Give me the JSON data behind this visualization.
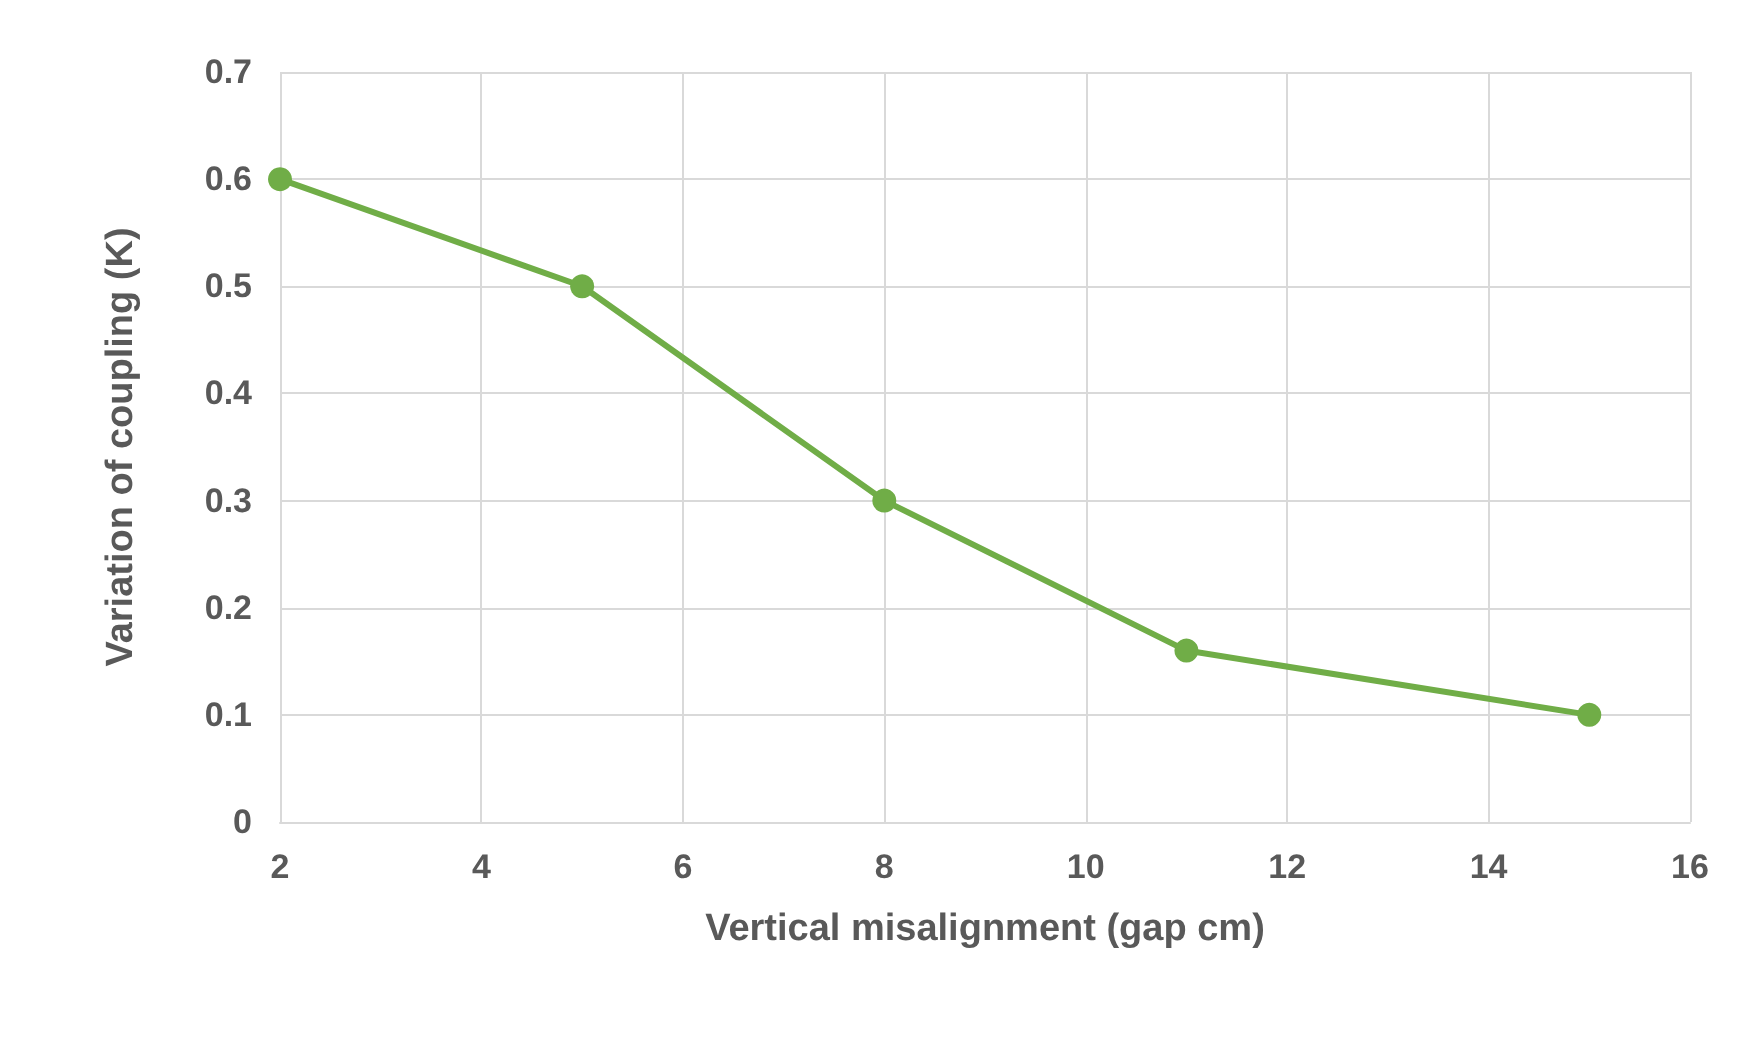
{
  "chart_data": {
    "type": "line",
    "xlabel": "Vertical misalignment (gap cm)",
    "ylabel": "Variation of coupling (K)",
    "x": [
      2,
      5,
      8,
      11,
      15
    ],
    "series": [
      {
        "color": "#70ad47",
        "values": [
          0.6,
          0.5,
          0.3,
          0.16,
          0.1
        ]
      }
    ],
    "xlim": [
      2,
      16
    ],
    "xticks": [
      2,
      4,
      6,
      8,
      10,
      12,
      14,
      16
    ],
    "ylim": [
      0,
      0.7
    ],
    "yticks": [
      0,
      0.1,
      0.2,
      0.3,
      0.4,
      0.5,
      0.6,
      0.7
    ],
    "grid": true,
    "marker": "circle",
    "line_style": "solid"
  }
}
